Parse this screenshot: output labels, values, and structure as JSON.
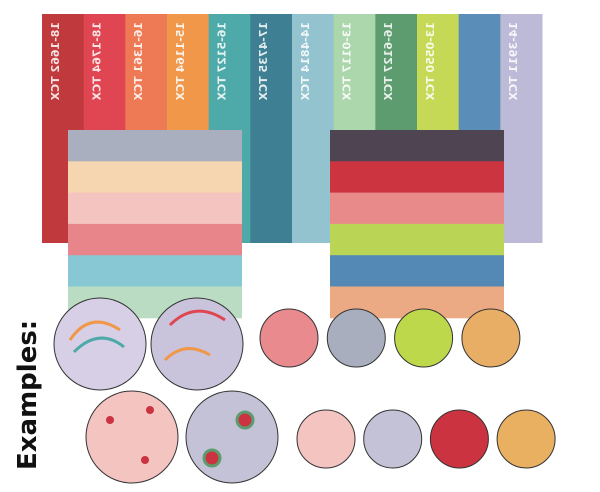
{
  "swatches": [
    {
      "label": "18-1662 TCX",
      "color": "#c0393c"
    },
    {
      "label": "18-1764 TCX",
      "color": "#e04652"
    },
    {
      "label": "16-1361 TCX",
      "color": "#ee7a55"
    },
    {
      "label": "15-1164 TCX",
      "color": "#f0974a"
    },
    {
      "label": "16-5127 TCX",
      "color": "#4eaaa8"
    },
    {
      "label": "17-4735 TCX",
      "color": "#3e7f93"
    },
    {
      "label": "14-4814 TCX",
      "color": "#92c3cf"
    },
    {
      "label": "13-0117 TCX",
      "color": "#acd6ac"
    },
    {
      "label": "16-6127 TCX",
      "color": "#5c9c6e"
    },
    {
      "label": "13-0550 TCX",
      "color": "#c5d957"
    },
    {
      "color": "#5a8db8"
    },
    {
      "label": "14-3911 TCX",
      "color": "#bcbad7"
    }
  ],
  "palette_left": [
    "#a9afbf",
    "#f6d6b0",
    "#f4c4c0",
    "#e8858a",
    "#88c8d4",
    "#b9dcc3"
  ],
  "palette_right": [
    "#4e4452",
    "#cc3540",
    "#e98a8a",
    "#bad556",
    "#5489b6",
    "#ecaa84"
  ],
  "examples_title": "Examples:",
  "dots_row1": [
    "#e98a8e",
    "#a9aebe",
    "#bdd84a",
    "#e8ae66"
  ],
  "dots_row2": [
    "#f4c4c0",
    "#c3c2d6",
    "#cb3340",
    "#e8b060"
  ]
}
